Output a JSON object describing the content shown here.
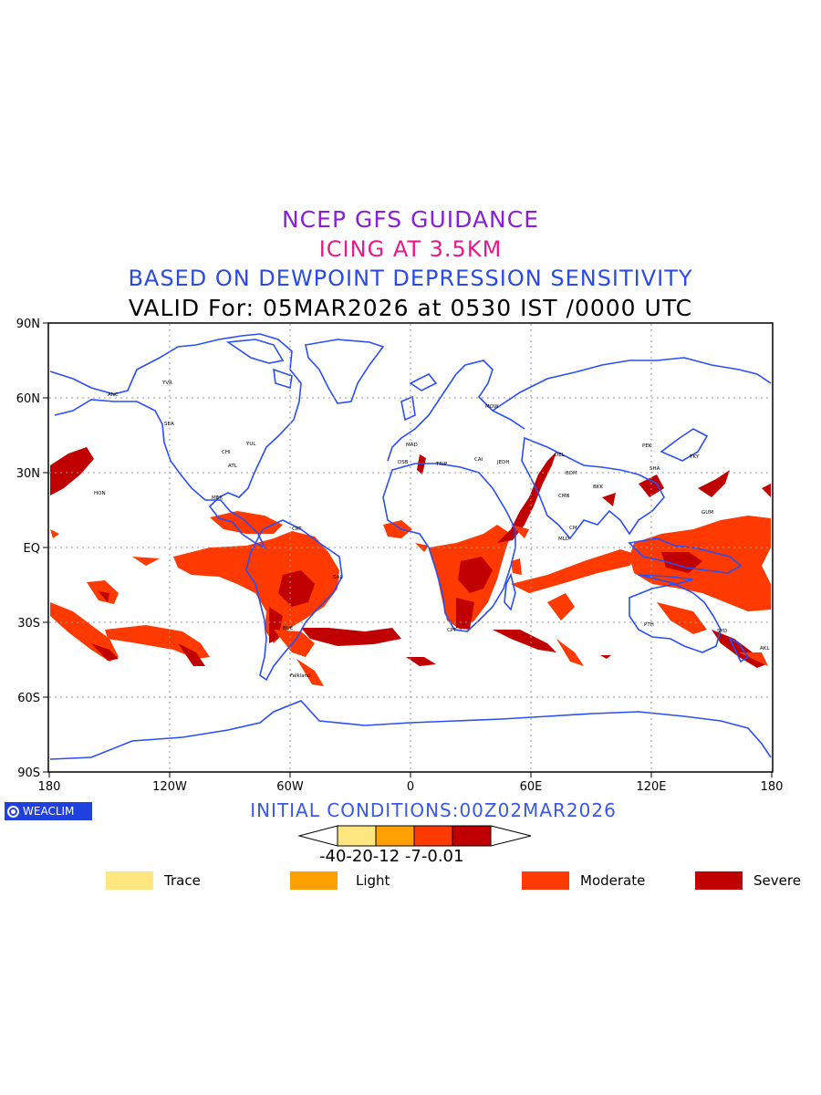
{
  "titles": {
    "line1": "NCEP GFS GUIDANCE",
    "line2": "ICING AT 3.5KM",
    "line3": "BASED ON DEWPOINT DEPRESSION SENSITIVITY",
    "line4": "VALID For: 05MAR2026 at 0530 IST /0000 UTC"
  },
  "axes": {
    "lat_labels": [
      "90N",
      "60N",
      "30N",
      "EQ",
      "30S",
      "60S",
      "90S"
    ],
    "lon_labels": [
      "180",
      "120W",
      "60W",
      "0",
      "60E",
      "120E",
      "180"
    ]
  },
  "initial_conditions": "INITIAL CONDITIONS:00Z02MAR2026",
  "logo_text": "WEACLIM",
  "colorbar": {
    "colors": [
      "#ffe680",
      "#ffa000",
      "#ff3a00",
      "#c00000"
    ],
    "labels": "-40-20-12 -7-0.01"
  },
  "legend": [
    {
      "label": "Trace",
      "color": "#ffe680"
    },
    {
      "label": "Light",
      "color": "#ffa000"
    },
    {
      "label": "Moderate",
      "color": "#ff3a00"
    },
    {
      "label": "Severe",
      "color": "#c00000"
    }
  ],
  "colors": {
    "coastline": "#2b4ef0",
    "moderate": "#ff3a00",
    "severe": "#c00000"
  }
}
